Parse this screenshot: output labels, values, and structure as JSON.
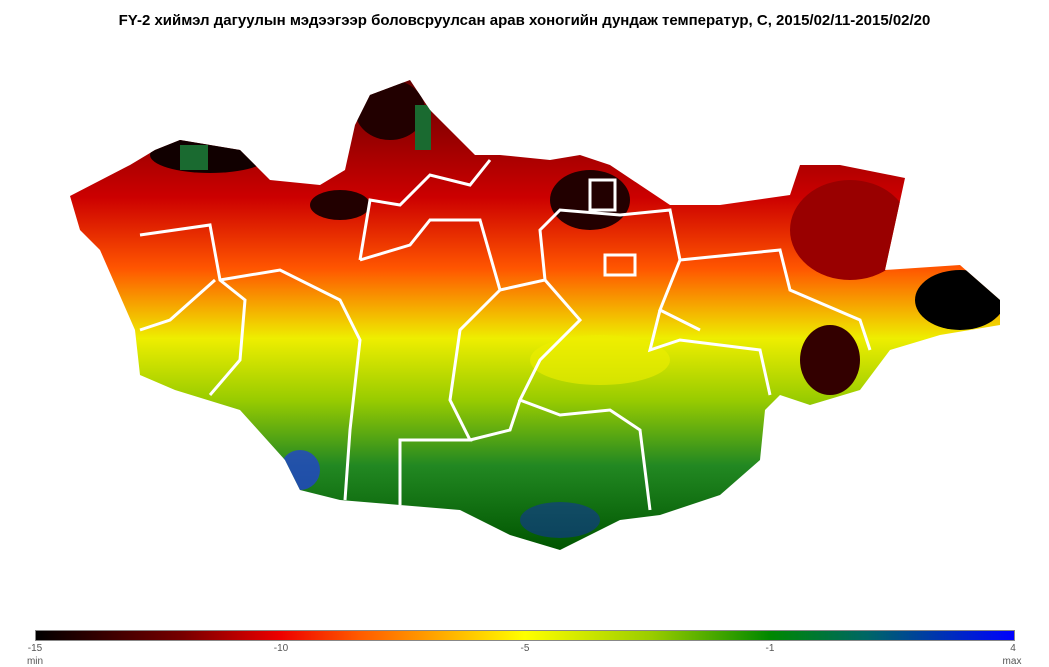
{
  "title": "FY-2 хиймэл дагуулын мэдээгээр боловсруулсан арав хоногийн  дундаж температур, С, 2015/02/11-2015/02/20",
  "colorbar": {
    "ticks": [
      "-15",
      "-10",
      "-5",
      "-1",
      "4"
    ],
    "min_label": "min",
    "max_label": "max",
    "colors": [
      "#000000",
      "#770000",
      "#ee0000",
      "#ff5a00",
      "#ffb000",
      "#ffff00",
      "#99cc00",
      "#008800",
      "#006666",
      "#0000ff"
    ]
  }
}
